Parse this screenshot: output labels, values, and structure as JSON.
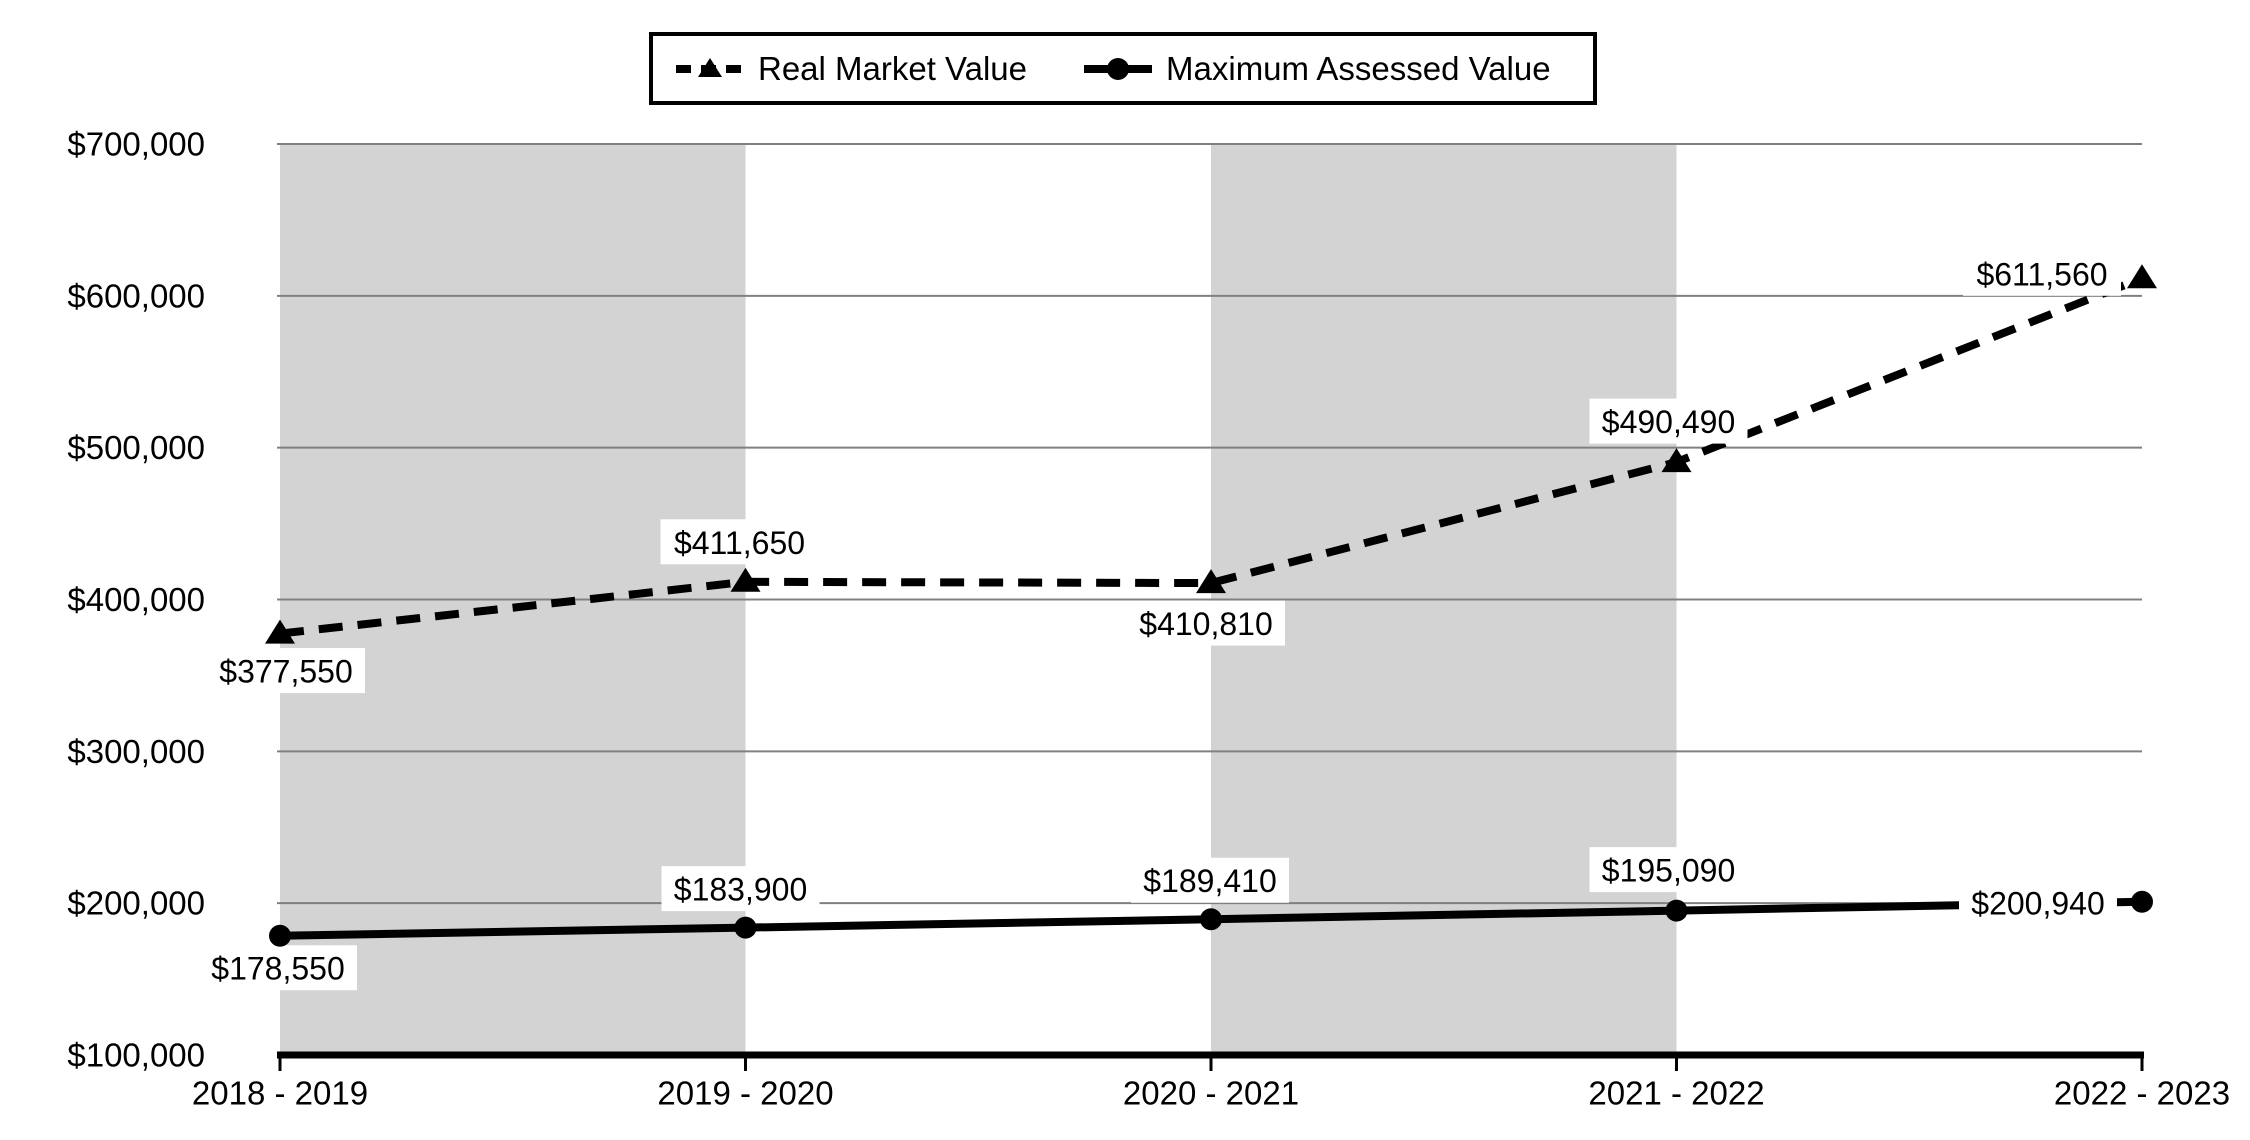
{
  "chart": {
    "legend": {
      "items": [
        {
          "label": "Real Market Value",
          "marker": "triangle-dashed-line"
        },
        {
          "label": "Maximum Assessed Value",
          "marker": "circle-solid-line"
        }
      ]
    }
  },
  "chart_data": {
    "type": "line",
    "title": "",
    "xlabel": "",
    "ylabel": "",
    "categories": [
      "2018 - 2019",
      "2019 - 2020",
      "2020 - 2021",
      "2021 - 2022",
      "2022 - 2023"
    ],
    "series": [
      {
        "name": "Real Market Value",
        "line_style": "dashed",
        "marker": "triangle",
        "color": "#000000",
        "values": [
          377550,
          411650,
          410810,
          490490,
          611560
        ],
        "data_labels": [
          "$377,550",
          "$411,650",
          "$410,810",
          "$490,490",
          "$611,560"
        ]
      },
      {
        "name": "Maximum Assessed Value",
        "line_style": "solid",
        "marker": "circle",
        "color": "#000000",
        "values": [
          178550,
          183900,
          189410,
          195090,
          200940
        ],
        "data_labels": [
          "$178,550",
          "$183,900",
          "$189,410",
          "$195,090",
          "$200,940"
        ]
      }
    ],
    "ylim": [
      100000,
      700000
    ],
    "ytick_step": 100000,
    "yticks": [
      {
        "value": 100000,
        "label": "$100,000"
      },
      {
        "value": 200000,
        "label": "$200,000"
      },
      {
        "value": 300000,
        "label": "$300,000"
      },
      {
        "value": 400000,
        "label": "$400,000"
      },
      {
        "value": 500000,
        "label": "$500,000"
      },
      {
        "value": 600000,
        "label": "$600,000"
      },
      {
        "value": 700000,
        "label": "$700,000"
      }
    ],
    "grid": true,
    "legend_position": "top-center",
    "background_bands": {
      "description": "alternating vertical shaded bands between category columns",
      "between_category_indexes": [
        [
          0,
          1
        ],
        [
          2,
          3
        ]
      ]
    }
  },
  "colors": {
    "series_ink": "#000000",
    "band_fill": "#d3d3d3",
    "gridline": "#808080",
    "axis_line": "#000000",
    "data_label_background": "#ffffff",
    "page_background": "#ffffff",
    "text": "#000000"
  }
}
